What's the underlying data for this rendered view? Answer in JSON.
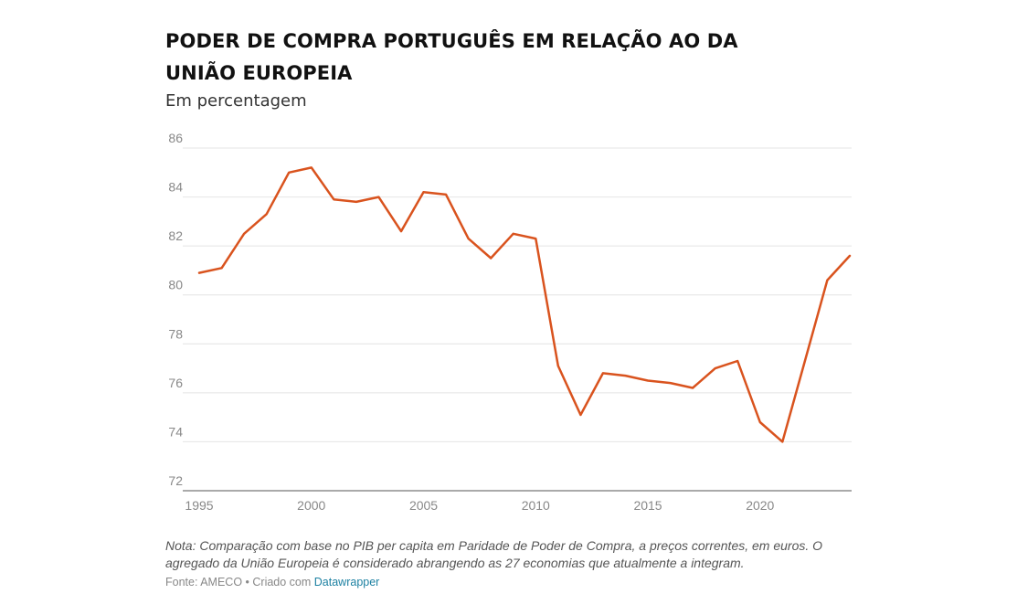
{
  "header": {
    "title": "PODER DE COMPRA PORTUGUÊS EM RELAÇÃO AO DA UNIÃO EUROPEIA",
    "subtitle": "Em percentagem"
  },
  "note": "Nota: Comparação com base no PIB per capita em Paridade de Poder de Compra, a preços correntes, em euros. O agregado da União Europeia é considerado abrangendo as 27 economias que atualmente a integram.",
  "footer": {
    "source": "Fonte: AMECO",
    "separator": " • ",
    "created_with": "Criado com ",
    "tool_link": "Datawrapper"
  },
  "colors": {
    "line": "#d9531e",
    "grid": "#e4e4e4",
    "axis": "#555555"
  },
  "chart_data": {
    "type": "line",
    "title": "PODER DE COMPRA PORTUGUÊS EM RELAÇÃO AO DA UNIÃO EUROPEIA",
    "subtitle": "Em percentagem",
    "xlabel": "",
    "ylabel": "",
    "xlim": [
      1995,
      2024
    ],
    "ylim": [
      72,
      86
    ],
    "x_ticks": [
      1995,
      2000,
      2005,
      2010,
      2015,
      2020
    ],
    "y_ticks": [
      72,
      74,
      76,
      78,
      80,
      82,
      84,
      86
    ],
    "grid": true,
    "series": [
      {
        "x": [
          1995,
          1996,
          1997,
          1998,
          1999,
          2000,
          2001,
          2002,
          2003,
          2004,
          2005,
          2006,
          2007,
          2008,
          2009,
          2010,
          2011,
          2012,
          2013,
          2014,
          2015,
          2016,
          2017,
          2018,
          2019,
          2020,
          2021,
          2022,
          2023,
          2024
        ],
        "y": [
          80.9,
          81.1,
          82.5,
          83.3,
          85.0,
          85.2,
          83.9,
          83.8,
          84.0,
          82.6,
          84.2,
          84.1,
          82.3,
          81.5,
          82.5,
          82.3,
          77.1,
          75.1,
          76.8,
          76.7,
          76.5,
          76.4,
          76.2,
          77.0,
          77.3,
          74.8,
          74.0,
          77.3,
          80.6,
          81.6
        ]
      }
    ]
  }
}
